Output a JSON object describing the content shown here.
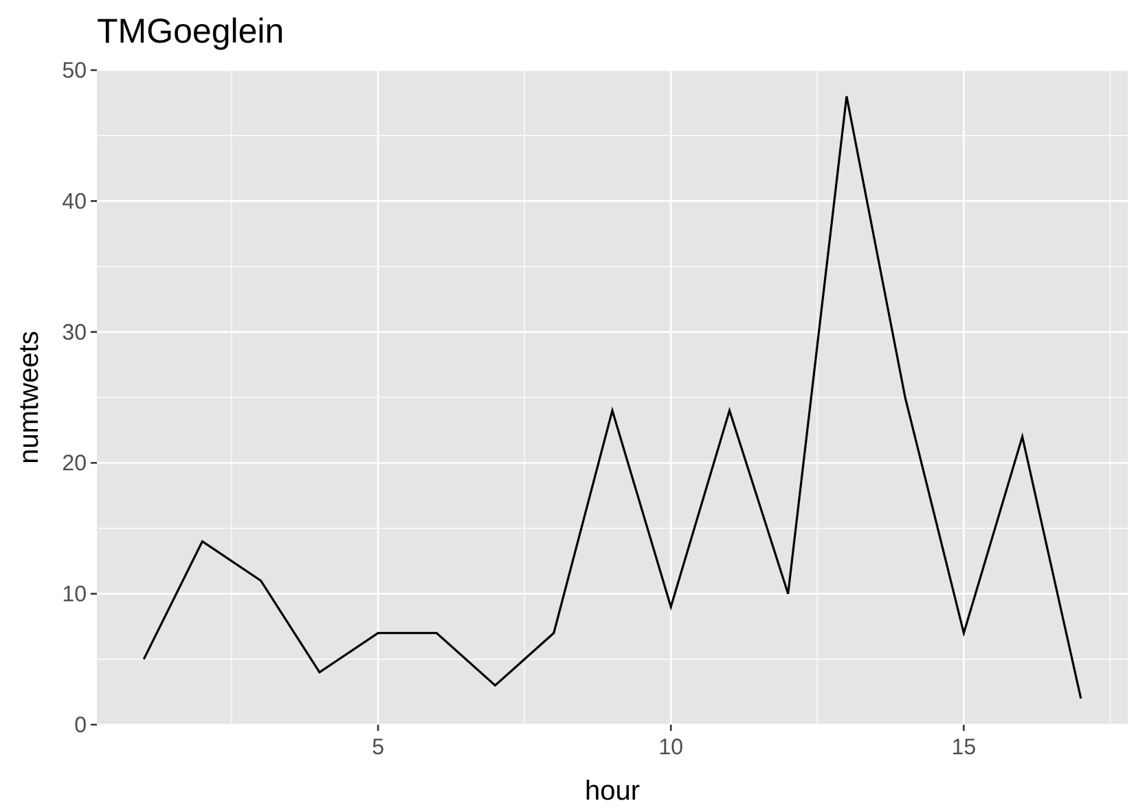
{
  "chart_data": {
    "type": "line",
    "title": "TMGoeglein",
    "xlabel": "hour",
    "ylabel": "numtweets",
    "x": [
      1,
      2,
      3,
      4,
      5,
      6,
      7,
      8,
      9,
      10,
      11,
      12,
      13,
      14,
      15,
      16,
      17
    ],
    "series": [
      {
        "values": [
          5,
          14,
          11,
          4,
          7,
          7,
          3,
          7,
          24,
          9,
          24,
          10,
          48,
          25,
          7,
          22,
          2
        ]
      }
    ],
    "xlim": [
      0.2,
      17.8
    ],
    "ylim": [
      0,
      50
    ],
    "xticks": [
      5,
      10,
      15
    ],
    "yticks": [
      0,
      10,
      20,
      30,
      40,
      50
    ],
    "grid": true,
    "colors": {
      "panel": "#e5e5e5",
      "grid": "#ffffff",
      "line": "#000000",
      "tick_text": "#4d4d4d"
    }
  }
}
